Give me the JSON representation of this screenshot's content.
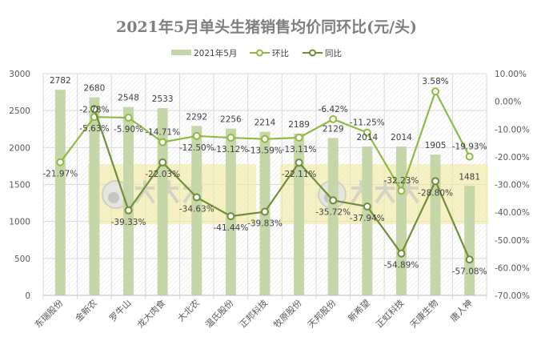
{
  "chart_data": {
    "type": "bar+line",
    "title": "2021年5月单头生猪销售均价同环比(元/头)",
    "categories": [
      "东瑞股份",
      "金新农",
      "罗牛山",
      "龙大肉食",
      "大北农",
      "温氏股份",
      "正邦科技",
      "牧原股份",
      "天邦股份",
      "新希望",
      "正虹科技",
      "天康生物",
      "唐人神"
    ],
    "series": [
      {
        "name": "2021年5月",
        "type": "bar",
        "axis": "left",
        "color": "#c5d6a8",
        "values": [
          2782,
          2680,
          2548,
          2533,
          2292,
          2256,
          2214,
          2189,
          2129,
          2014,
          2014,
          1905,
          1481
        ]
      },
      {
        "name": "环比",
        "type": "line",
        "axis": "right",
        "color": "#8fba45",
        "unit": "%",
        "values": [
          -21.97,
          -5.63,
          -5.9,
          -14.71,
          -12.5,
          -13.12,
          -13.59,
          -13.11,
          -6.42,
          -11.25,
          -32.23,
          3.58,
          -19.93
        ]
      },
      {
        "name": "同比",
        "type": "line",
        "axis": "right",
        "color": "#6f8f36",
        "unit": "%",
        "values": [
          null,
          -2.78,
          -39.33,
          -22.03,
          -34.63,
          -41.44,
          -39.83,
          -22.11,
          -35.72,
          -37.94,
          -54.89,
          -28.8,
          -57.08
        ]
      }
    ],
    "left_axis": {
      "ylim": [
        0,
        3000
      ],
      "ticks": [
        "0",
        "500",
        "1000",
        "1500",
        "2000",
        "2500",
        "3000"
      ]
    },
    "right_axis": {
      "ylim": [
        -70,
        10
      ],
      "ticks": [
        "-70.00%",
        "-60.00%",
        "-50.00%",
        "-40.00%",
        "-30.00%",
        "-20.00%",
        "-10.00%",
        "0.00%",
        "10.00%"
      ]
    },
    "grid": true,
    "legend_position": "top",
    "watermark": {
      "text": "大畜牧",
      "url_text": "www.dxumu.com"
    }
  }
}
